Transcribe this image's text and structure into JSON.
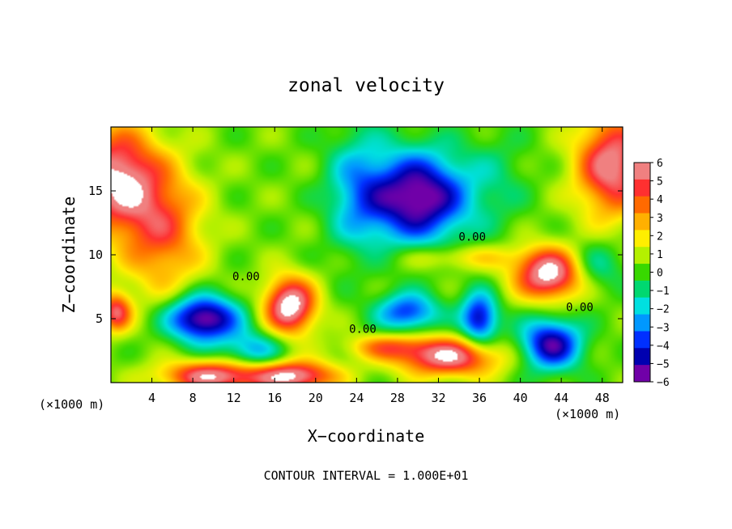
{
  "chart_data": {
    "type": "heatmap",
    "title": "zonal velocity",
    "xlabel": "X−coordinate",
    "ylabel": "Z−coordinate",
    "x_unit": "(×1000 m)",
    "y_unit": "(×1000 m)",
    "footer": "CONTOUR INTERVAL = 1.000E+01",
    "xlim": [
      0,
      50
    ],
    "ylim": [
      0,
      20
    ],
    "x_ticks": [
      4,
      8,
      12,
      16,
      20,
      24,
      28,
      32,
      36,
      40,
      44,
      48
    ],
    "y_ticks": [
      5,
      10,
      15
    ],
    "colorbar": {
      "levels": [
        6,
        5,
        4,
        3,
        2,
        1,
        0,
        -1,
        -2,
        -3,
        -4,
        -5,
        -6
      ],
      "tick_labels": [
        "6",
        "5",
        "4",
        "3",
        "2",
        "1",
        "0",
        "−1",
        "−2",
        "−3",
        "−4",
        "−5",
        "−6"
      ],
      "colors": [
        "#f08080",
        "#ff3030",
        "#ff6a00",
        "#ffb000",
        "#ffee00",
        "#b4f000",
        "#38d800",
        "#00d870",
        "#00e0e0",
        "#0098ff",
        "#0030ff",
        "#0000b0",
        "#7000a8"
      ],
      "saturation_color": "#ffffff"
    },
    "contour_labels": [
      {
        "text": "0.00",
        "x": 13.2,
        "y": 8.0
      },
      {
        "text": "0.00",
        "x": 35.3,
        "y": 11.1
      },
      {
        "text": "0.00",
        "x": 45.8,
        "y": 5.6
      },
      {
        "text": "0.00",
        "x": 24.6,
        "y": 3.9
      }
    ],
    "field_centers": [
      {
        "x": 0.5,
        "y": 16,
        "v": 6,
        "sx": 4,
        "sz": 4
      },
      {
        "x": 5,
        "y": 12,
        "v": 4,
        "sx": 4,
        "sz": 5
      },
      {
        "x": 49,
        "y": 17,
        "v": 6,
        "sx": 3.5,
        "sz": 4
      },
      {
        "x": 30,
        "y": 14.5,
        "v": -7,
        "sx": 5,
        "sz": 3.5
      },
      {
        "x": 24,
        "y": 15,
        "v": -2.5,
        "sx": 3,
        "sz": 5
      },
      {
        "x": 9,
        "y": 5,
        "v": -7,
        "sx": 3.5,
        "sz": 1.8
      },
      {
        "x": 0.5,
        "y": 5.5,
        "v": 5,
        "sx": 1.5,
        "sz": 1.5
      },
      {
        "x": 17.5,
        "y": 6.0,
        "v": 7,
        "sx": 2.5,
        "sz": 2.2
      },
      {
        "x": 43,
        "y": 8.5,
        "v": 7,
        "sx": 3.5,
        "sz": 2
      },
      {
        "x": 43,
        "y": 3,
        "v": -6,
        "sx": 3,
        "sz": 2
      },
      {
        "x": 33,
        "y": 2,
        "v": 6,
        "sx": 5,
        "sz": 1.5
      },
      {
        "x": 10,
        "y": 0.5,
        "v": 6,
        "sx": 5,
        "sz": 1.2
      },
      {
        "x": 18,
        "y": 0.5,
        "v": 6,
        "sx": 4,
        "sz": 1.2
      },
      {
        "x": 29,
        "y": 5.5,
        "v": -4.5,
        "sx": 3,
        "sz": 1.5
      },
      {
        "x": 36,
        "y": 5,
        "v": -5.5,
        "sx": 1.8,
        "sz": 2
      },
      {
        "x": 27,
        "y": 2.8,
        "v": 3,
        "sx": 4,
        "sz": 1
      },
      {
        "x": 14,
        "y": 2.5,
        "v": -3,
        "sx": 3,
        "sz": 1.5
      },
      {
        "x": 34,
        "y": 9.8,
        "v": 2,
        "sx": 6,
        "sz": 1
      },
      {
        "x": 47,
        "y": 9,
        "v": -2.5,
        "sx": 3,
        "sz": 2
      },
      {
        "x": 38,
        "y": 16,
        "v": -1,
        "sx": 3,
        "sz": 4
      }
    ]
  }
}
